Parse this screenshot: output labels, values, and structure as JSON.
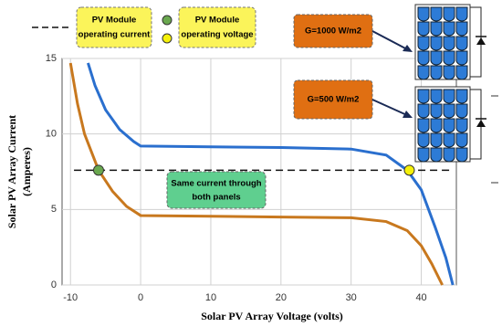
{
  "chart_data": {
    "type": "line",
    "xlabel": "Solar PV Array Voltage (volts)",
    "ylabel": [
      "Solar PV Array Current",
      "(Amperes)"
    ],
    "xlim": [
      -11.2,
      45
    ],
    "ylim": [
      0,
      15
    ],
    "xticks": [
      -10,
      0,
      10,
      20,
      30,
      40
    ],
    "yticks": [
      0,
      5,
      10,
      15
    ],
    "grid": true,
    "series": [
      {
        "color": "#2a6fce",
        "x": [
          -7.5,
          -6.5,
          -5,
          -3,
          -1,
          0,
          10,
          20,
          30,
          35,
          38,
          40,
          42,
          43.5,
          44.5
        ],
        "values": [
          14.7,
          13.2,
          11.6,
          10.3,
          9.5,
          9.2,
          9.15,
          9.1,
          9.0,
          8.6,
          7.6,
          6.3,
          3.8,
          1.8,
          0
        ]
      },
      {
        "color": "#c8781e",
        "x": [
          -10,
          -9,
          -8,
          -6,
          -4,
          -2,
          0,
          10,
          20,
          30,
          35,
          38,
          40,
          41.5,
          43
        ],
        "values": [
          14.7,
          12.0,
          10.0,
          7.6,
          6.2,
          5.2,
          4.6,
          4.55,
          4.5,
          4.45,
          4.2,
          3.6,
          2.6,
          1.4,
          0
        ]
      }
    ],
    "hline": {
      "value": 7.6,
      "x": [
        -9.5,
        44
      ]
    },
    "points": [
      {
        "x": -6,
        "y": 7.6,
        "color": "#6aa84f"
      },
      {
        "x": 38.3,
        "y": 7.6,
        "color": "#f5f10a"
      }
    ],
    "annotations": {
      "current": [
        "PV Module",
        "operating current"
      ],
      "voltage": [
        "PV Module",
        "operating voltage"
      ],
      "g1000": "G=1000 W/m2",
      "g500": "G=500 W/m2",
      "same": [
        "Same current through",
        "both panels"
      ]
    }
  }
}
